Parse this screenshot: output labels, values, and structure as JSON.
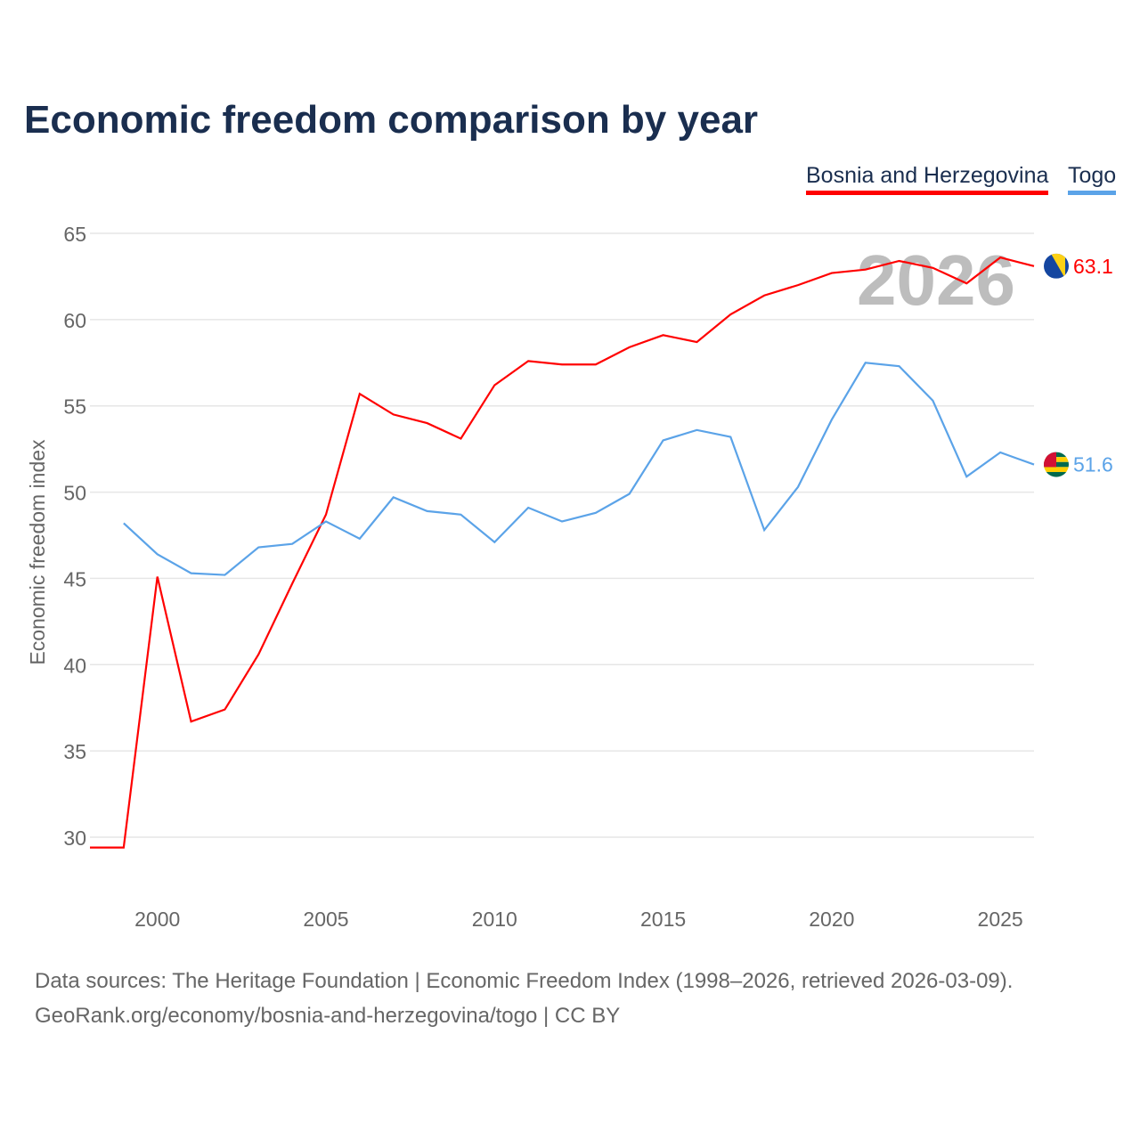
{
  "title": "Economic freedom comparison by year",
  "footer": {
    "line1": "Data sources: The Heritage Foundation | Economic Freedom Index (1998–2026, retrieved 2026-03-09).",
    "line2": "GeoRank.org/economy/bosnia-and-herzegovina/togo | CC BY"
  },
  "chart_data": {
    "type": "line",
    "title": "Economic freedom comparison by year",
    "xlabel": "",
    "ylabel": "Economic freedom index",
    "xlim": [
      1998,
      2026
    ],
    "ylim": [
      27,
      66
    ],
    "yticks": [
      30,
      35,
      40,
      45,
      50,
      55,
      60,
      65
    ],
    "xticks": [
      2000,
      2005,
      2010,
      2015,
      2020,
      2025
    ],
    "grid": true,
    "legend_placement": "top-right",
    "watermark_year": "2026",
    "series": [
      {
        "name": "Bosnia and Herzegovina",
        "color": "#ff0000",
        "end_label": "63.1",
        "flag": "bosnia-flag-icon",
        "x": [
          1998,
          1999,
          2000,
          2001,
          2002,
          2003,
          2004,
          2005,
          2006,
          2007,
          2008,
          2009,
          2010,
          2011,
          2012,
          2013,
          2014,
          2015,
          2016,
          2017,
          2018,
          2019,
          2020,
          2021,
          2022,
          2023,
          2024,
          2025,
          2026
        ],
        "values": [
          29.4,
          29.4,
          45.1,
          36.7,
          37.4,
          40.6,
          44.7,
          48.7,
          55.7,
          54.5,
          54.0,
          53.1,
          56.2,
          57.6,
          57.4,
          57.4,
          58.4,
          59.1,
          58.7,
          60.3,
          61.4,
          62.0,
          62.7,
          62.9,
          63.4,
          63.0,
          62.1,
          63.6,
          63.1
        ]
      },
      {
        "name": "Togo",
        "color": "#5ba3e8",
        "end_label": "51.6",
        "flag": "togo-flag-icon",
        "x": [
          1999,
          2000,
          2001,
          2002,
          2003,
          2004,
          2005,
          2006,
          2007,
          2008,
          2009,
          2010,
          2011,
          2012,
          2013,
          2014,
          2015,
          2016,
          2017,
          2018,
          2019,
          2020,
          2021,
          2022,
          2023,
          2024,
          2025,
          2026
        ],
        "values": [
          48.2,
          46.4,
          45.3,
          45.2,
          46.8,
          47.0,
          48.3,
          47.3,
          49.7,
          48.9,
          48.7,
          47.1,
          49.1,
          48.3,
          48.8,
          49.9,
          53.0,
          53.6,
          53.2,
          47.8,
          50.3,
          54.2,
          57.5,
          57.3,
          55.3,
          50.9,
          52.3,
          51.6
        ]
      }
    ]
  }
}
